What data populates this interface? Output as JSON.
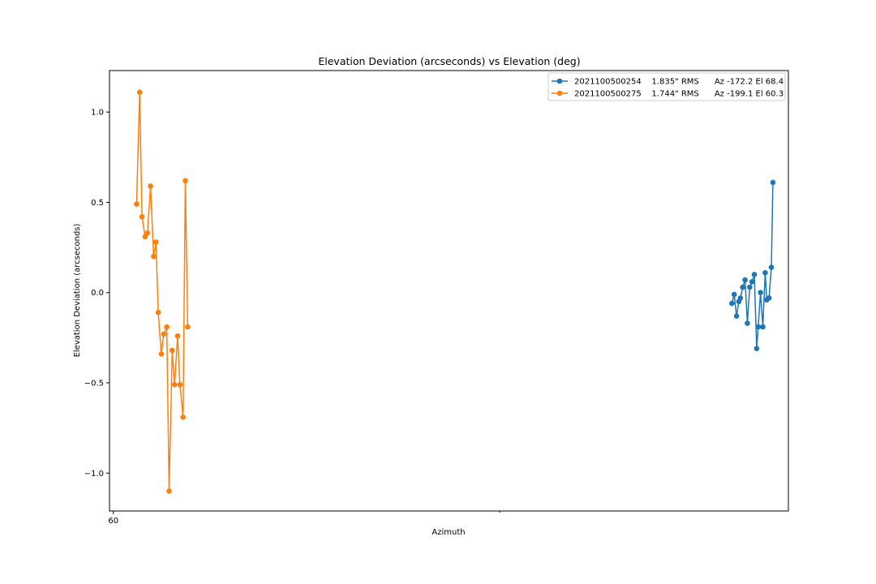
{
  "chart_data": {
    "type": "line",
    "title": "Elevation Deviation (arcseconds) vs Elevation (deg)",
    "xlabel": "Azimuth",
    "ylabel": "Elevation Deviation (arcseconds)",
    "xlim": [
      59.95,
      68.72
    ],
    "ylim": [
      -1.21,
      1.23
    ],
    "xticks": [
      {
        "value": 60,
        "label": "60"
      }
    ],
    "yticks": [
      {
        "value": -1.0,
        "label": "−1.0"
      },
      {
        "value": -0.5,
        "label": "−0.5"
      },
      {
        "value": 0.0,
        "label": "0.0"
      },
      {
        "value": 0.5,
        "label": "0.5"
      },
      {
        "value": 1.0,
        "label": "1.0"
      }
    ],
    "grid": false,
    "legend_position": "top-right",
    "series": [
      {
        "name": "2021100500254    1.835\" RMS      Az -172.2 El 68.4",
        "color": "#1f77b4",
        "x": [
          67.99,
          68.02,
          68.05,
          68.08,
          68.1,
          68.13,
          68.16,
          68.19,
          68.22,
          68.25,
          68.28,
          68.31,
          68.33,
          68.36,
          68.39,
          68.42,
          68.44,
          68.47,
          68.5,
          68.52
        ],
        "y": [
          -0.06,
          -0.01,
          -0.13,
          -0.05,
          -0.03,
          0.03,
          0.07,
          -0.17,
          0.03,
          0.06,
          0.1,
          -0.31,
          -0.19,
          0.0,
          -0.19,
          0.11,
          -0.04,
          -0.03,
          0.14,
          0.61
        ]
      },
      {
        "name": "2021100500275    1.744\" RMS      Az -199.1 El 60.3",
        "color": "#ff7f0e",
        "x": [
          60.3,
          60.34,
          60.37,
          60.41,
          60.44,
          60.48,
          60.52,
          60.55,
          60.58,
          60.62,
          60.65,
          60.69,
          60.72,
          60.76,
          60.79,
          60.83,
          60.86,
          60.9,
          60.93,
          60.96
        ],
        "y": [
          0.49,
          1.11,
          0.42,
          0.31,
          0.33,
          0.59,
          0.2,
          0.28,
          -0.11,
          -0.34,
          -0.23,
          -0.19,
          -1.1,
          -0.32,
          -0.51,
          -0.24,
          -0.51,
          -0.69,
          0.62,
          -0.19
        ]
      }
    ]
  }
}
